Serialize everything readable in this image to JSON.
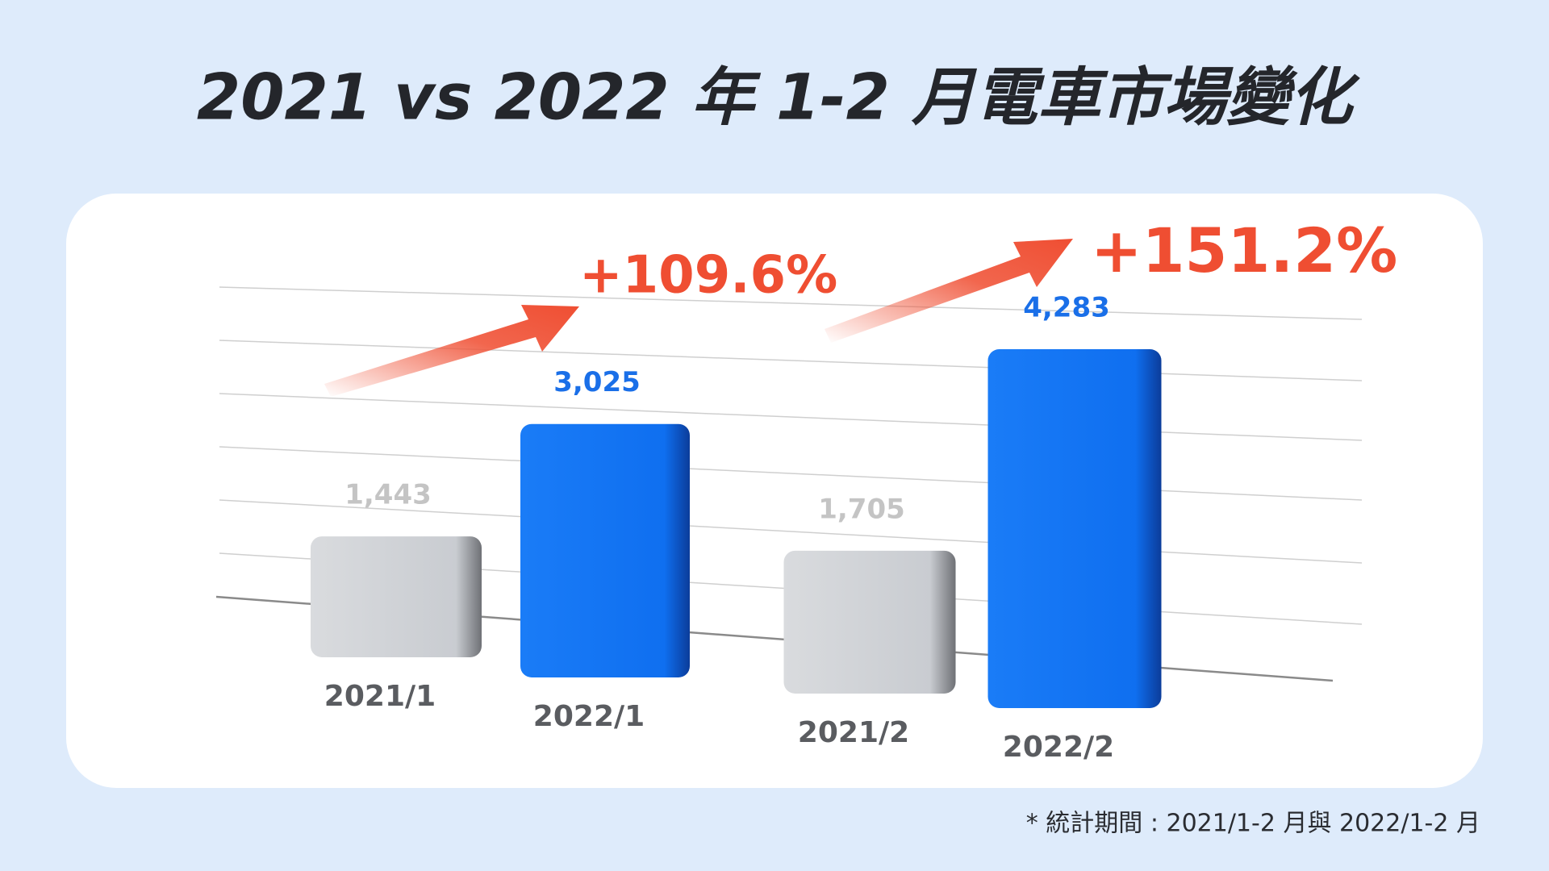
{
  "chart_data": {
    "type": "bar",
    "title": "2021 vs 2022 年 1-2 月電車市場變化",
    "categories": [
      "2021/1",
      "2022/1",
      "2021/2",
      "2022/2"
    ],
    "values": [
      1443,
      3025,
      1705,
      4283
    ],
    "value_labels": [
      "1,443",
      "3,025",
      "1,705",
      "4,283"
    ],
    "colors": [
      "#c9ccd1",
      "#1576f2",
      "#c9ccd1",
      "#1576f2"
    ],
    "annotations": [
      "+109.6%",
      "+151.2%"
    ],
    "footnote": "* 統計期間 : 2021/1-2 月與 2022/1-2 月"
  }
}
